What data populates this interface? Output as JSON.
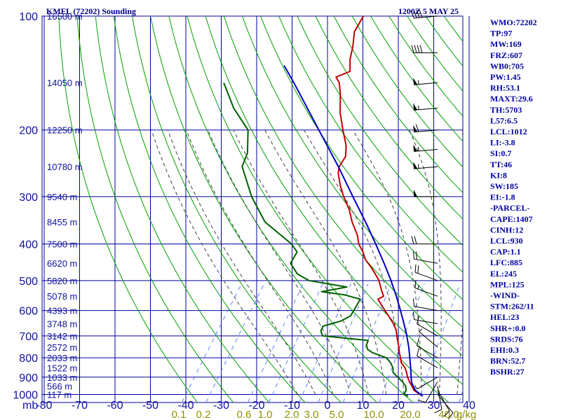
{
  "header": {
    "title": "KMFL (72202) Sounding",
    "datetime": "1200Z  5 MAY 25"
  },
  "colors": {
    "grid": "#0000a0",
    "dry_adiabat": "#00a000",
    "moist_adiabat": "#404040",
    "mixing_ratio": "#6080ff",
    "temperature": "#c00000",
    "dewpoint": "#006000",
    "parcel": "#0000c0",
    "text": "#0000a0"
  },
  "chart_data": {
    "type": "line",
    "title": "KMFL (72202) Sounding",
    "subtitle": "1200Z  5 MAY 25",
    "y_axis_unit": "mb",
    "pressure_ticks": [
      100,
      200,
      300,
      400,
      500,
      600,
      700,
      800,
      900,
      1000
    ],
    "temperature_ticks": [
      -80,
      -70,
      -60,
      -50,
      -40,
      -30,
      -20,
      -10,
      0,
      10,
      20,
      30,
      40
    ],
    "height_labels": [
      {
        "p": 100,
        "label": "16500 m"
      },
      {
        "p": 150,
        "label": "14050 m"
      },
      {
        "p": 200,
        "label": "12250 m"
      },
      {
        "p": 250,
        "label": "10780 m"
      },
      {
        "p": 300,
        "label": "9540 m"
      },
      {
        "p": 350,
        "label": "8455 m"
      },
      {
        "p": 400,
        "label": "7500 m"
      },
      {
        "p": 450,
        "label": "6620 m"
      },
      {
        "p": 500,
        "label": "5820 m"
      },
      {
        "p": 550,
        "label": "5078 m"
      },
      {
        "p": 600,
        "label": "4393 m"
      },
      {
        "p": 650,
        "label": "3748 m"
      },
      {
        "p": 700,
        "label": "3142 m"
      },
      {
        "p": 750,
        "label": "2572 m"
      },
      {
        "p": 800,
        "label": "2033 m"
      },
      {
        "p": 850,
        "label": "1522 m"
      },
      {
        "p": 900,
        "label": "1033 m"
      },
      {
        "p": 950,
        "label": "566 m"
      },
      {
        "p": 1000,
        "label": "117 m"
      }
    ],
    "mixing_ratio_labels": [
      "0.1",
      "0.2",
      "0.6",
      "1.0",
      "2.0",
      "3.0",
      "5.0",
      "10.0",
      "20.0",
      "40.0",
      "g/kg"
    ],
    "mixing_ratio_lines": [
      0.1,
      0.2,
      0.6,
      1.0,
      2.0,
      3.0,
      5.0,
      10.0,
      20.0,
      40.0
    ],
    "dry_adiabats_c": [
      -40,
      -30,
      -20,
      -10,
      0,
      10,
      20,
      30,
      40,
      50,
      60,
      70,
      80,
      90,
      100,
      110,
      120,
      130,
      140,
      150,
      160,
      170,
      180,
      190,
      200,
      210,
      220
    ],
    "moist_adiabats_c": [
      -10,
      -5,
      0,
      5,
      10,
      15,
      20,
      25,
      30,
      35
    ],
    "series": [
      {
        "name": "temperature",
        "points": [
          {
            "p": 1010,
            "t": 25.5
          },
          {
            "p": 1000,
            "t": 24.6
          },
          {
            "p": 975,
            "t": 22.0
          },
          {
            "p": 950,
            "t": 20.6
          },
          {
            "p": 925,
            "t": 19.0
          },
          {
            "p": 900,
            "t": 17.6
          },
          {
            "p": 875,
            "t": 16.4
          },
          {
            "p": 850,
            "t": 15.0
          },
          {
            "p": 825,
            "t": 13.0
          },
          {
            "p": 800,
            "t": 11.8
          },
          {
            "p": 775,
            "t": 10.4
          },
          {
            "p": 750,
            "t": 9.2
          },
          {
            "p": 725,
            "t": 7.8
          },
          {
            "p": 700,
            "t": 6.4
          },
          {
            "p": 675,
            "t": 5.0
          },
          {
            "p": 650,
            "t": 3.0
          },
          {
            "p": 625,
            "t": 0.6
          },
          {
            "p": 600,
            "t": -2.0
          },
          {
            "p": 575,
            "t": -4.6
          },
          {
            "p": 560,
            "t": -6.2
          },
          {
            "p": 550,
            "t": -5.2
          },
          {
            "p": 530,
            "t": -7.0
          },
          {
            "p": 500,
            "t": -9.6
          },
          {
            "p": 480,
            "t": -12.0
          },
          {
            "p": 460,
            "t": -14.6
          },
          {
            "p": 440,
            "t": -17.6
          },
          {
            "p": 420,
            "t": -19.8
          },
          {
            "p": 400,
            "t": -22.6
          },
          {
            "p": 380,
            "t": -24.6
          },
          {
            "p": 350,
            "t": -28.8
          },
          {
            "p": 325,
            "t": -32.0
          },
          {
            "p": 300,
            "t": -36.2
          },
          {
            "p": 280,
            "t": -39.4
          },
          {
            "p": 260,
            "t": -42.4
          },
          {
            "p": 250,
            "t": -43.4
          },
          {
            "p": 235,
            "t": -43.6
          },
          {
            "p": 220,
            "t": -45.6
          },
          {
            "p": 200,
            "t": -49.6
          },
          {
            "p": 180,
            "t": -53.8
          },
          {
            "p": 160,
            "t": -57.6
          },
          {
            "p": 150,
            "t": -60.0
          },
          {
            "p": 145,
            "t": -62.0
          },
          {
            "p": 140,
            "t": -59.2
          },
          {
            "p": 130,
            "t": -61.6
          },
          {
            "p": 120,
            "t": -63.4
          },
          {
            "p": 110,
            "t": -65.8
          },
          {
            "p": 100,
            "t": -66.4
          }
        ]
      },
      {
        "name": "dewpoint",
        "points": [
          {
            "p": 1010,
            "t": 21.5
          },
          {
            "p": 1000,
            "t": 20.0
          },
          {
            "p": 975,
            "t": 19.8
          },
          {
            "p": 950,
            "t": 18.8
          },
          {
            "p": 925,
            "t": 17.0
          },
          {
            "p": 900,
            "t": 14.8
          },
          {
            "p": 875,
            "t": 12.6
          },
          {
            "p": 850,
            "t": 11.6
          },
          {
            "p": 825,
            "t": 10.0
          },
          {
            "p": 800,
            "t": 7.8
          },
          {
            "p": 775,
            "t": 2.8
          },
          {
            "p": 760,
            "t": 0.8
          },
          {
            "p": 740,
            "t": -0.4
          },
          {
            "p": 720,
            "t": -0.8
          },
          {
            "p": 700,
            "t": -14.6
          },
          {
            "p": 680,
            "t": -16.0
          },
          {
            "p": 660,
            "t": -16.4
          },
          {
            "p": 640,
            "t": -12.4
          },
          {
            "p": 620,
            "t": -10.6
          },
          {
            "p": 600,
            "t": -10.8
          },
          {
            "p": 580,
            "t": -11.0
          },
          {
            "p": 560,
            "t": -11.2
          },
          {
            "p": 545,
            "t": -16.6
          },
          {
            "p": 535,
            "t": -23.6
          },
          {
            "p": 520,
            "t": -17.4
          },
          {
            "p": 500,
            "t": -29.4
          },
          {
            "p": 480,
            "t": -34.0
          },
          {
            "p": 450,
            "t": -38.0
          },
          {
            "p": 420,
            "t": -38.4
          },
          {
            "p": 400,
            "t": -41.6
          },
          {
            "p": 350,
            "t": -53.4
          },
          {
            "p": 300,
            "t": -62.2
          },
          {
            "p": 250,
            "t": -70.8
          },
          {
            "p": 230,
            "t": -72.0
          },
          {
            "p": 200,
            "t": -76.4
          },
          {
            "p": 175,
            "t": -84.8
          },
          {
            "p": 150,
            "t": -92.6
          }
        ]
      },
      {
        "name": "parcel",
        "points": [
          {
            "p": 1010,
            "t": 25.6
          },
          {
            "p": 975,
            "t": 22.4
          },
          {
            "p": 930,
            "t": 19.8
          },
          {
            "p": 900,
            "t": 18.6
          },
          {
            "p": 850,
            "t": 16.6
          },
          {
            "p": 800,
            "t": 14.4
          },
          {
            "p": 750,
            "t": 12.0
          },
          {
            "p": 700,
            "t": 9.2
          },
          {
            "p": 650,
            "t": 6.0
          },
          {
            "p": 600,
            "t": 2.4
          },
          {
            "p": 550,
            "t": -1.6
          },
          {
            "p": 500,
            "t": -6.2
          },
          {
            "p": 450,
            "t": -11.6
          },
          {
            "p": 400,
            "t": -17.8
          },
          {
            "p": 350,
            "t": -25.0
          },
          {
            "p": 300,
            "t": -33.6
          },
          {
            "p": 250,
            "t": -43.6
          },
          {
            "p": 200,
            "t": -56.4
          },
          {
            "p": 150,
            "t": -72.8
          },
          {
            "p": 135,
            "t": -79.0
          }
        ]
      }
    ],
    "wind_barbs": [
      {
        "p": 1000,
        "dir": 140,
        "spd": 10
      },
      {
        "p": 975,
        "dir": 150,
        "spd": 10
      },
      {
        "p": 950,
        "dir": 170,
        "spd": 10
      },
      {
        "p": 925,
        "dir": 210,
        "spd": 10
      },
      {
        "p": 900,
        "dir": 240,
        "spd": 5
      },
      {
        "p": 850,
        "dir": 300,
        "spd": 10
      },
      {
        "p": 800,
        "dir": 300,
        "spd": 10
      },
      {
        "p": 750,
        "dir": 310,
        "spd": 5
      },
      {
        "p": 700,
        "dir": 300,
        "spd": 10
      },
      {
        "p": 650,
        "dir": 280,
        "spd": 10
      },
      {
        "p": 600,
        "dir": 280,
        "spd": 10
      },
      {
        "p": 550,
        "dir": 290,
        "spd": 15
      },
      {
        "p": 500,
        "dir": 290,
        "spd": 20
      },
      {
        "p": 450,
        "dir": 280,
        "spd": 20
      },
      {
        "p": 400,
        "dir": 270,
        "spd": 20
      },
      {
        "p": 300,
        "dir": 270,
        "spd": 50
      },
      {
        "p": 250,
        "dir": 265,
        "spd": 55
      },
      {
        "p": 225,
        "dir": 265,
        "spd": 55
      },
      {
        "p": 200,
        "dir": 265,
        "spd": 60
      },
      {
        "p": 175,
        "dir": 265,
        "spd": 55
      },
      {
        "p": 150,
        "dir": 265,
        "spd": 55
      },
      {
        "p": 125,
        "dir": 270,
        "spd": 40
      },
      {
        "p": 100,
        "dir": 265,
        "spd": 40
      }
    ]
  },
  "indices": [
    "WMO:72202",
    "TP:97",
    "MW:169",
    "FRZ:607",
    "WB0:705",
    "PW:1.45",
    "RH:53.1",
    "MAXT:29.6",
    "TH:5703",
    "L57:6.5",
    "LCL:1012",
    "LI:-3.8",
    "SI:0.7",
    "TT:46",
    "KI:8",
    "SW:185",
    "EI:-1.8",
    "-PARCEL-",
    "CAPE:1407",
    "CINH:12",
    "LCL:930",
    "CAP:1.1",
    "LFC:885",
    "EL:245",
    "MPL:125",
    "-WIND-",
    "STM:262/11",
    "HEL:23",
    "SHR+:0.0",
    "SRDS:76",
    "EHI:0.3",
    "BRN:52.7",
    "BSHR:27"
  ]
}
